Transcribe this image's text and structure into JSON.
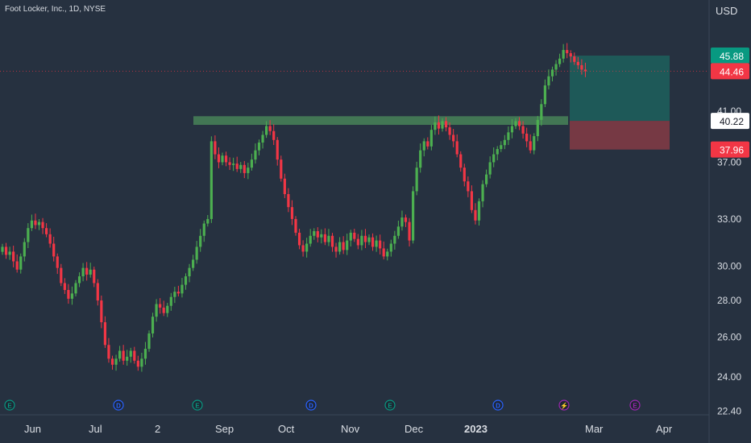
{
  "chart_data": {
    "type": "candlestick",
    "title": "Foot Locker, Inc., 1D, NYSE",
    "currency": "USD",
    "price_axis_ticks": [
      22.4,
      24.0,
      26.0,
      28.0,
      30.0,
      33.0,
      37.0,
      41.0
    ],
    "price_tick_labels": [
      "22.40",
      "24.00",
      "26.00",
      "28.00",
      "30.00",
      "33.00",
      "37.00",
      "41.00"
    ],
    "time_axis_labels": [
      "Jun",
      "Jul",
      "2",
      "Sep",
      "Oct",
      "Nov",
      "Dec",
      "2023",
      "Mar",
      "Apr"
    ],
    "bold_time_labels": [
      "2023"
    ],
    "price_badges": [
      {
        "label": "45.88",
        "value": 45.88,
        "color": "#089981",
        "text_color": "#ffffff"
      },
      {
        "label": "44.46",
        "value": 44.46,
        "color": "#f23645",
        "text_color": "#ffffff"
      },
      {
        "label": "40.22",
        "value": 40.22,
        "color": "#ffffff",
        "text_color": "#131722"
      },
      {
        "label": "37.96",
        "value": 37.96,
        "color": "#f23645",
        "text_color": "#ffffff"
      }
    ],
    "current_price": 44.46,
    "support_zone": {
      "low": 39.9,
      "high": 40.6
    },
    "position": {
      "entry": 40.22,
      "target": 45.88,
      "stop": 37.96
    },
    "event_markers": [
      {
        "type": "E",
        "color": "#089981"
      },
      {
        "type": "D",
        "color": "#2962ff"
      },
      {
        "type": "E",
        "color": "#089981"
      },
      {
        "type": "D",
        "color": "#2962ff"
      },
      {
        "type": "E",
        "color": "#089981"
      },
      {
        "type": "D",
        "color": "#2962ff"
      },
      {
        "type": "split",
        "color": "#9c27b0"
      },
      {
        "type": "E",
        "color": "#9c27b0"
      }
    ],
    "closes": [
      31.2,
      30.7,
      30.9,
      30.3,
      29.8,
      30.6,
      31.5,
      32.4,
      32.9,
      32.6,
      32.8,
      32.4,
      32.0,
      31.4,
      30.6,
      29.9,
      29.0,
      28.6,
      28.1,
      28.4,
      29.0,
      29.4,
      29.9,
      29.5,
      29.8,
      29.0,
      28.0,
      26.8,
      25.6,
      24.9,
      24.6,
      24.9,
      25.3,
      24.8,
      25.0,
      25.3,
      24.8,
      24.5,
      24.9,
      25.4,
      26.2,
      27.1,
      27.8,
      27.6,
      27.3,
      27.7,
      28.2,
      28.5,
      28.4,
      28.9,
      29.4,
      29.9,
      30.4,
      31.2,
      31.9,
      32.7,
      33.0,
      38.6,
      37.6,
      37.0,
      37.5,
      37.0,
      36.8,
      36.9,
      36.5,
      36.8,
      36.2,
      36.6,
      37.2,
      37.9,
      38.5,
      39.1,
      39.8,
      39.4,
      38.7,
      37.2,
      35.8,
      34.7,
      33.8,
      33.0,
      32.1,
      31.3,
      30.9,
      31.4,
      31.9,
      32.2,
      31.8,
      32.0,
      31.5,
      31.9,
      31.2,
      30.9,
      31.5,
      31.0,
      31.6,
      32.1,
      31.7,
      31.3,
      31.9,
      31.5,
      31.8,
      31.2,
      31.6,
      31.1,
      30.6,
      30.9,
      31.4,
      31.9,
      32.5,
      33.1,
      32.8,
      31.6,
      34.9,
      36.6,
      37.9,
      38.6,
      38.2,
      39.5,
      40.1,
      39.6,
      40.2,
      39.7,
      39.1,
      38.6,
      37.6,
      36.6,
      35.6,
      34.9,
      33.6,
      32.9,
      34.2,
      35.4,
      36.1,
      37.0,
      37.6,
      38.0,
      38.3,
      38.7,
      39.3,
      39.8,
      40.2,
      39.8,
      39.2,
      38.6,
      37.9,
      39.0,
      40.3,
      41.6,
      43.2,
      44.0,
      44.6,
      45.1,
      45.6,
      46.4,
      46.1,
      45.8,
      45.3,
      45.0,
      44.6,
      44.46
    ]
  }
}
